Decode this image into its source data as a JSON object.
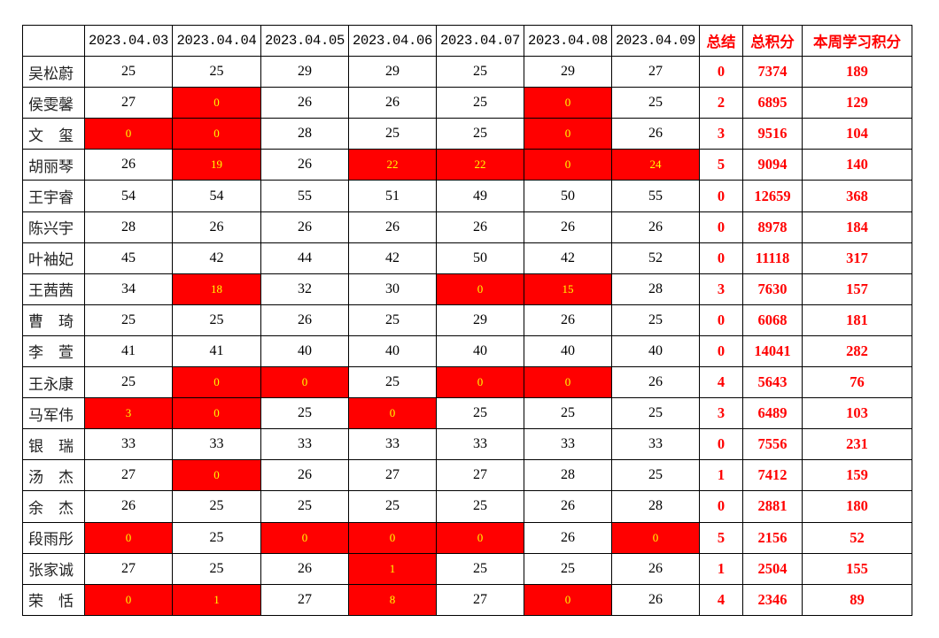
{
  "colors": {
    "flag_background": "#ff0000",
    "flag_text": "#ffff00",
    "summary_text": "#ff0000"
  },
  "headers": {
    "name": "",
    "dates": [
      "2023.04.03",
      "2023.04.04",
      "2023.04.05",
      "2023.04.06",
      "2023.04.07",
      "2023.04.08",
      "2023.04.09"
    ],
    "summary": "总结",
    "total": "总积分",
    "weekly": "本周学习积分"
  },
  "rows": [
    {
      "name": "吴松蔚",
      "scores": [
        25,
        25,
        29,
        29,
        25,
        29,
        27
      ],
      "summary": 0,
      "total": 7374,
      "weekly": 189
    },
    {
      "name": "侯雯馨",
      "scores": [
        27,
        0,
        26,
        26,
        25,
        0,
        25
      ],
      "summary": 2,
      "total": 6895,
      "weekly": 129
    },
    {
      "name": "文　玺",
      "scores": [
        0,
        0,
        28,
        25,
        25,
        0,
        26
      ],
      "summary": 3,
      "total": 9516,
      "weekly": 104
    },
    {
      "name": "胡丽琴",
      "scores": [
        26,
        19,
        26,
        22,
        22,
        0,
        24
      ],
      "summary": 5,
      "total": 9094,
      "weekly": 140
    },
    {
      "name": "王宇睿",
      "scores": [
        54,
        54,
        55,
        51,
        49,
        50,
        55
      ],
      "summary": 0,
      "total": 12659,
      "weekly": 368
    },
    {
      "name": "陈兴宇",
      "scores": [
        28,
        26,
        26,
        26,
        26,
        26,
        26
      ],
      "summary": 0,
      "total": 8978,
      "weekly": 184
    },
    {
      "name": "叶袖妃",
      "scores": [
        45,
        42,
        44,
        42,
        50,
        42,
        52
      ],
      "summary": 0,
      "total": 11118,
      "weekly": 317
    },
    {
      "name": "王茜茜",
      "scores": [
        34,
        18,
        32,
        30,
        0,
        15,
        28
      ],
      "summary": 3,
      "total": 7630,
      "weekly": 157
    },
    {
      "name": "曹　琦",
      "scores": [
        25,
        25,
        26,
        25,
        29,
        26,
        25
      ],
      "summary": 0,
      "total": 6068,
      "weekly": 181
    },
    {
      "name": "李　萱",
      "scores": [
        41,
        41,
        40,
        40,
        40,
        40,
        40
      ],
      "summary": 0,
      "total": 14041,
      "weekly": 282
    },
    {
      "name": "王永康",
      "scores": [
        25,
        0,
        0,
        25,
        0,
        0,
        26
      ],
      "summary": 4,
      "total": 5643,
      "weekly": 76
    },
    {
      "name": "马军伟",
      "scores": [
        3,
        0,
        25,
        0,
        25,
        25,
        25
      ],
      "summary": 3,
      "total": 6489,
      "weekly": 103
    },
    {
      "name": "银　瑞",
      "scores": [
        33,
        33,
        33,
        33,
        33,
        33,
        33
      ],
      "summary": 0,
      "total": 7556,
      "weekly": 231
    },
    {
      "name": "汤　杰",
      "scores": [
        27,
        0,
        26,
        27,
        27,
        28,
        25
      ],
      "summary": 1,
      "total": 7412,
      "weekly": 159
    },
    {
      "name": "余　杰",
      "scores": [
        26,
        25,
        25,
        25,
        25,
        26,
        28
      ],
      "summary": 0,
      "total": 2881,
      "weekly": 180
    },
    {
      "name": "段雨彤",
      "scores": [
        0,
        25,
        0,
        0,
        0,
        26,
        0
      ],
      "summary": 5,
      "total": 2156,
      "weekly": 52
    },
    {
      "name": "张家诚",
      "scores": [
        27,
        25,
        26,
        1,
        25,
        25,
        26
      ],
      "summary": 1,
      "total": 2504,
      "weekly": 155
    },
    {
      "name": "荣　恬",
      "scores": [
        0,
        1,
        27,
        8,
        27,
        0,
        26
      ],
      "summary": 4,
      "total": 2346,
      "weekly": 89
    }
  ]
}
